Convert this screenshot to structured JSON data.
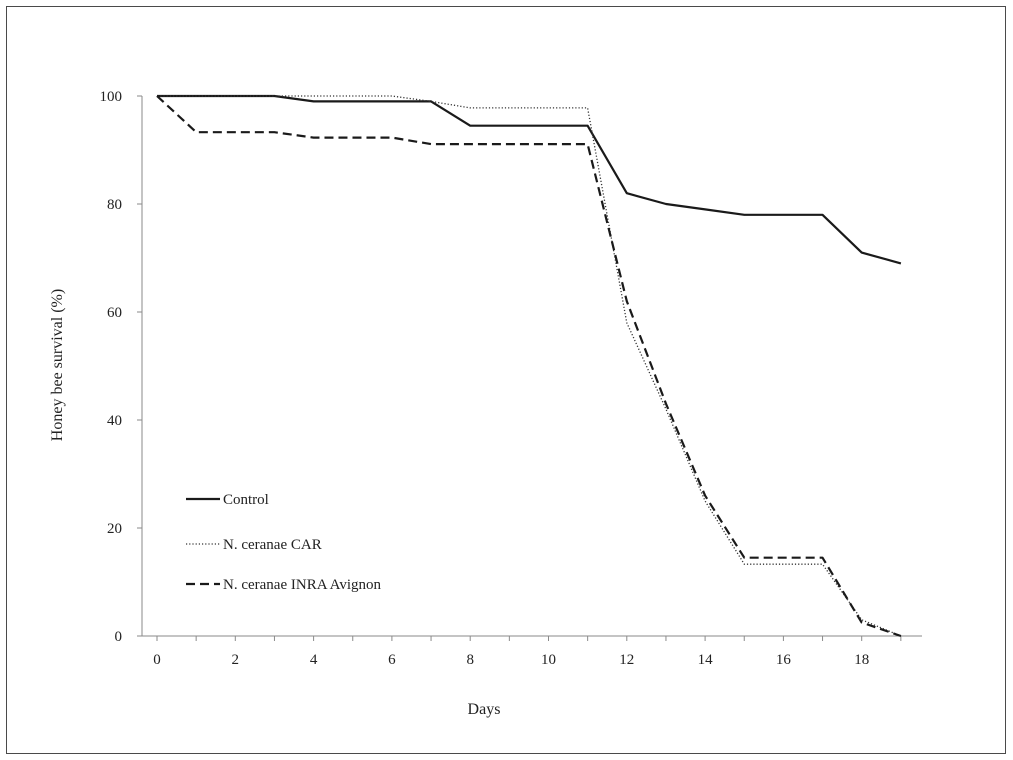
{
  "chart_data": {
    "type": "line",
    "title": "",
    "xlabel": "Days",
    "ylabel": "Honey bee survival (%)",
    "xlim": [
      0,
      19.4
    ],
    "ylim": [
      0,
      100
    ],
    "xticks": [
      0,
      2,
      4,
      6,
      8,
      10,
      12,
      14,
      16,
      18
    ],
    "yticks": [
      0,
      20,
      40,
      60,
      80,
      100
    ],
    "grid": false,
    "legend_position": "lower-left",
    "series": [
      {
        "name": "Control",
        "style": "solid",
        "color": "#1a1a1a",
        "x": [
          0,
          1,
          2,
          3,
          4,
          5,
          6,
          7,
          8,
          9,
          10,
          11,
          12,
          13,
          14,
          15,
          16,
          17,
          18,
          19
        ],
        "y": [
          100,
          100,
          100,
          100,
          99,
          99,
          99,
          99,
          94.5,
          94.5,
          94.5,
          94.5,
          82,
          80,
          79,
          78,
          78,
          78,
          71,
          69
        ]
      },
      {
        "name": "N. ceranae CAR",
        "style": "dotted",
        "color": "#333333",
        "x": [
          0,
          1,
          2,
          3,
          4,
          5,
          6,
          7,
          8,
          9,
          10,
          11,
          12,
          13,
          14,
          15,
          16,
          17,
          18,
          19
        ],
        "y": [
          100,
          100,
          100,
          100,
          100,
          100,
          100,
          99,
          97.8,
          97.8,
          97.8,
          97.8,
          58,
          42,
          25,
          13.3,
          13.3,
          13.3,
          3,
          0
        ]
      },
      {
        "name": "N. ceranae INRA Avignon",
        "style": "dashed",
        "color": "#1a1a1a",
        "x": [
          0,
          1,
          2,
          3,
          4,
          5,
          6,
          7,
          8,
          9,
          10,
          11,
          12,
          13,
          14,
          15,
          16,
          17,
          18,
          19
        ],
        "y": [
          100,
          93.3,
          93.3,
          93.3,
          92.3,
          92.3,
          92.3,
          91.1,
          91.1,
          91.1,
          91.1,
          91.1,
          62,
          43,
          26,
          14.5,
          14.5,
          14.5,
          2.5,
          0
        ]
      }
    ]
  }
}
